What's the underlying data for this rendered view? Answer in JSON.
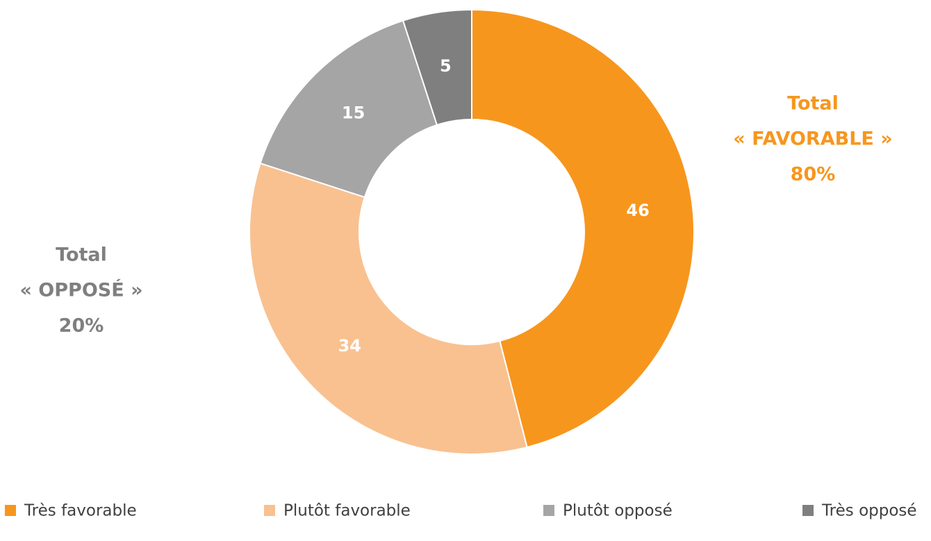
{
  "chart_data": {
    "type": "donut",
    "categories": [
      "Très favorable",
      "Plutôt favorable",
      "Plutôt opposé",
      "Très opposé"
    ],
    "values": [
      46,
      34,
      15,
      5
    ],
    "colors": [
      "#f7961d",
      "#f9c190",
      "#a5a5a5",
      "#7f7f7f"
    ],
    "annotations": [
      {
        "lines": [
          "Total",
          "« FAVORABLE »",
          "80%"
        ],
        "color": "#f7961d"
      },
      {
        "lines": [
          "Total",
          "« OPPOSÉ »",
          "20%"
        ],
        "color": "#7f7f7f"
      }
    ],
    "legend": "bottom"
  }
}
